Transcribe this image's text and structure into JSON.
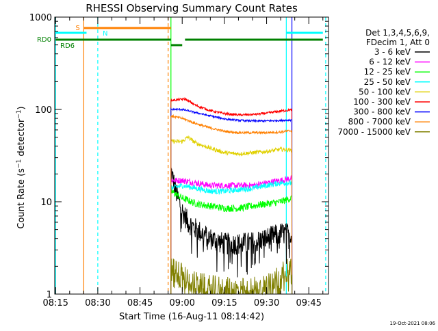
{
  "chart_data": {
    "type": "line",
    "title": "RHESSI Observing Summary Count Rates",
    "xlabel": "Start Time (16-Aug-11 08:14:42)",
    "ylabel": "Count Rate (s⁻¹ detector⁻¹)",
    "ylabel_main": "Count Rate (s",
    "ylabel_sup1": "−1",
    "ylabel_mid": " detector",
    "ylabel_sup2": "−1",
    "ylabel_end": ")",
    "yscale": "log",
    "ylim": [
      1,
      1000
    ],
    "xlim": [
      "08:14:42",
      "09:52:00"
    ],
    "xticks": [
      "08:15",
      "08:30",
      "08:45",
      "09:00",
      "09:15",
      "09:30",
      "09:45"
    ],
    "yticks": [
      "1",
      "10",
      "100",
      "1000"
    ],
    "timestamp": "19-Oct-2021 08:06",
    "legend": {
      "placement": "right",
      "header": [
        "Det 1,3,4,5,6,9,",
        "FDecim 1, Att 0"
      ],
      "entries": [
        {
          "label": "3 - 6 keV",
          "color": "#000000"
        },
        {
          "label": "6 - 12 keV",
          "color": "#ff00ff"
        },
        {
          "label": "12 - 25 keV",
          "color": "#00ff00"
        },
        {
          "label": "25 - 50 keV",
          "color": "#00ffff"
        },
        {
          "label": "50 - 100 keV",
          "color": "#e0d000"
        },
        {
          "label": "100 - 300 keV",
          "color": "#ff0000"
        },
        {
          "label": "300 - 800 keV",
          "color": "#0000ff"
        },
        {
          "label": "800 - 7000 keV",
          "color": "#ff8000"
        },
        {
          "label": "7000 - 15000 keV",
          "color": "#808000"
        }
      ]
    },
    "flags": [
      {
        "label": "S",
        "color": "#ff8000",
        "start": "08:25",
        "end": "08:56"
      },
      {
        "label": "N",
        "color": "#00ffff",
        "segments": [
          [
            "08:15",
            "08:26"
          ],
          [
            "09:37",
            "09:50"
          ]
        ]
      },
      {
        "label": "RD0",
        "color": "#008000",
        "segments": [
          [
            "08:15",
            "08:56"
          ],
          [
            "08:56",
            "09:00"
          ],
          [
            "09:01",
            "09:39"
          ],
          [
            "09:39",
            "09:50"
          ]
        ]
      },
      {
        "label": "RD6",
        "color": "#008000"
      }
    ],
    "markers": [
      {
        "time": "08:15",
        "color": "#00ffff",
        "style": "solid"
      },
      {
        "time": "08:25",
        "color": "#ff8000",
        "style": "solid"
      },
      {
        "time": "08:30",
        "color": "#00ffff",
        "style": "dashed"
      },
      {
        "time": "08:55",
        "color": "#ff8000",
        "style": "dashed"
      },
      {
        "time": "08:56",
        "color": "#00ff00",
        "style": "solid"
      },
      {
        "time": "09:37",
        "color": "#00ffff",
        "style": "solid"
      },
      {
        "time": "09:39",
        "color": "#0000ff",
        "style": "solid"
      },
      {
        "time": "09:51",
        "color": "#00ffff",
        "style": "dashed"
      }
    ],
    "data_start": "08:56",
    "data_end": "09:39",
    "series": [
      {
        "name": "3 - 6 keV",
        "color": "#000000",
        "t": [
          "08:56",
          "08:58",
          "09:00",
          "09:02",
          "09:05",
          "09:10",
          "09:15",
          "09:20",
          "09:25",
          "09:30",
          "09:35",
          "09:39"
        ],
        "values": [
          22,
          12,
          8,
          6,
          5,
          4,
          3.5,
          3.5,
          3.6,
          4,
          4.5,
          4.5
        ]
      },
      {
        "name": "6 - 12 keV",
        "color": "#ff00ff",
        "t": [
          "08:56",
          "09:00",
          "09:05",
          "09:10",
          "09:15",
          "09:20",
          "09:25",
          "09:30",
          "09:35",
          "09:39"
        ],
        "values": [
          17,
          17,
          16,
          15,
          15,
          15,
          15,
          16,
          17,
          18
        ]
      },
      {
        "name": "12 - 25 keV",
        "color": "#00ff00",
        "t": [
          "08:56",
          "09:00",
          "09:05",
          "09:10",
          "09:15",
          "09:20",
          "09:25",
          "09:30",
          "09:35",
          "09:39"
        ],
        "values": [
          13,
          11,
          9.5,
          9,
          8.5,
          8.5,
          9,
          9.5,
          10,
          11
        ]
      },
      {
        "name": "25 - 50 keV",
        "color": "#00ffff",
        "t": [
          "08:56",
          "09:00",
          "09:05",
          "09:10",
          "09:15",
          "09:20",
          "09:25",
          "09:30",
          "09:35",
          "09:39"
        ],
        "values": [
          14,
          15,
          14,
          13,
          13,
          13.5,
          14,
          15,
          16,
          16
        ]
      },
      {
        "name": "50 - 100 keV",
        "color": "#e0d000",
        "t": [
          "08:56",
          "09:00",
          "09:02",
          "09:05",
          "09:10",
          "09:15",
          "09:20",
          "09:25",
          "09:30",
          "09:35",
          "09:39"
        ],
        "values": [
          45,
          45,
          50,
          43,
          38,
          34,
          33,
          34,
          35,
          37,
          36
        ]
      },
      {
        "name": "100 - 300 keV",
        "color": "#ff0000",
        "t": [
          "08:56",
          "09:01",
          "09:05",
          "09:10",
          "09:15",
          "09:20",
          "09:25",
          "09:30",
          "09:35",
          "09:39"
        ],
        "values": [
          125,
          130,
          110,
          97,
          90,
          87,
          88,
          91,
          96,
          99
        ]
      },
      {
        "name": "300 - 800 keV",
        "color": "#0000ff",
        "t": [
          "08:56",
          "09:00",
          "09:05",
          "09:10",
          "09:15",
          "09:20",
          "09:25",
          "09:30",
          "09:35",
          "09:39"
        ],
        "values": [
          100,
          100,
          92,
          85,
          79,
          76,
          75,
          75,
          76,
          77
        ]
      },
      {
        "name": "800 - 7000 keV",
        "color": "#ff8000",
        "t": [
          "08:56",
          "09:00",
          "09:05",
          "09:10",
          "09:15",
          "09:20",
          "09:25",
          "09:30",
          "09:35",
          "09:39"
        ],
        "values": [
          85,
          80,
          70,
          63,
          58,
          56,
          56,
          56,
          57,
          59
        ]
      },
      {
        "name": "7000 - 15000 keV",
        "color": "#808000",
        "t": [
          "08:56",
          "09:00",
          "09:05",
          "09:10",
          "09:15",
          "09:20",
          "09:25",
          "09:30",
          "09:35",
          "09:39"
        ],
        "values": [
          2.0,
          1.6,
          1.3,
          1.2,
          1.15,
          1.1,
          1.15,
          1.3,
          1.6,
          2.0
        ]
      }
    ]
  }
}
